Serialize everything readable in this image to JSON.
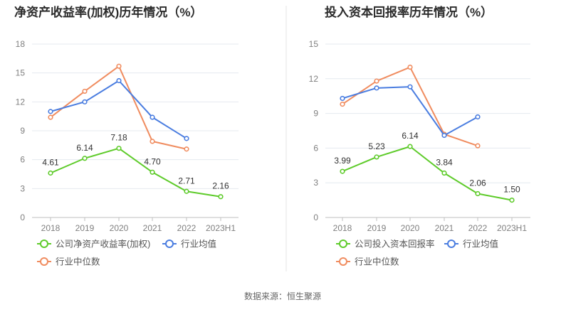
{
  "footer": {
    "source": "数据来源：恒生聚源"
  },
  "colors": {
    "company": "#5ecb2a",
    "industry_avg": "#4a7de0",
    "industry_median": "#f08c5f",
    "grid": "#e4e9ef",
    "axis": "#bfbfbf",
    "divider": "#e6e6e6"
  },
  "chart_data": [
    {
      "type": "line",
      "title": "净资产收益率(加权)历年情况（%）",
      "categories": [
        "2018",
        "2019",
        "2020",
        "2021",
        "2022",
        "2023H1"
      ],
      "ylim": [
        0,
        18
      ],
      "yticks": [
        0,
        3,
        6,
        9,
        12,
        15,
        18
      ],
      "grid": true,
      "legend_position": "bottom",
      "series": [
        {
          "name": "公司净资产收益率(加权)",
          "key": "company",
          "values": [
            4.61,
            6.14,
            7.18,
            4.7,
            2.71,
            2.16
          ],
          "labels": [
            "4.61",
            "6.14",
            "7.18",
            "4.70",
            "2.71",
            "2.16"
          ]
        },
        {
          "name": "行业均值",
          "key": "industry_avg",
          "values": [
            11.0,
            12.0,
            14.2,
            10.4,
            8.2,
            null
          ]
        },
        {
          "name": "行业中位数",
          "key": "industry_median",
          "values": [
            10.4,
            13.1,
            15.7,
            7.9,
            7.1,
            null
          ]
        }
      ]
    },
    {
      "type": "line",
      "title": "投入资本回报率历年情况（%）",
      "categories": [
        "2018",
        "2019",
        "2020",
        "2021",
        "2022",
        "2023H1"
      ],
      "ylim": [
        0,
        15
      ],
      "yticks": [
        0,
        3,
        6,
        9,
        12,
        15
      ],
      "grid": true,
      "legend_position": "bottom",
      "series": [
        {
          "name": "公司投入资本回报率",
          "key": "company",
          "values": [
            3.99,
            5.23,
            6.14,
            3.84,
            2.06,
            1.5
          ],
          "labels": [
            "3.99",
            "5.23",
            "6.14",
            "3.84",
            "2.06",
            "1.50"
          ]
        },
        {
          "name": "行业均值",
          "key": "industry_avg",
          "values": [
            10.3,
            11.2,
            11.3,
            7.1,
            8.7,
            null
          ]
        },
        {
          "name": "行业中位数",
          "key": "industry_median",
          "values": [
            9.8,
            11.8,
            13.0,
            7.2,
            6.2,
            null
          ]
        }
      ]
    }
  ]
}
